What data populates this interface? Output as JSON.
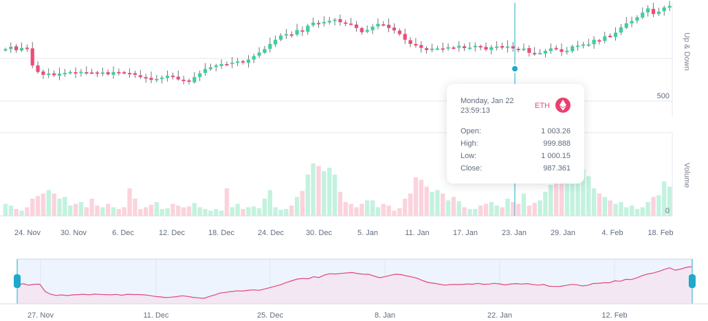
{
  "colors": {
    "up": "#3fcf9b",
    "down": "#ef4c74",
    "up_volume": "#c3f2df",
    "down_volume": "#fbd3dd",
    "crosshair": "#1ea8c9",
    "navigator_line": "#e0457b",
    "navigator_fill": "#f3e7f4",
    "navigator_mask": "#eef4fd",
    "handle": "#1ea8c9",
    "grid": "#e4e7ec"
  },
  "tooltip": {
    "date": "Monday, Jan 22",
    "time": "23:59:13",
    "coin": "ETH",
    "coin_icon": "ethereum-icon",
    "rows": [
      {
        "label": "Open:",
        "value": "1 003.26"
      },
      {
        "label": "High:",
        "value": "999.888"
      },
      {
        "label": "Low:",
        "value": "1 000.15"
      },
      {
        "label": "Close:",
        "value": "987.361"
      }
    ]
  },
  "chart_data": [
    {
      "type": "candlestick",
      "axis_title": "Up & Down",
      "y_tick_labels": [
        "500"
      ],
      "y_range": [
        300,
        800
      ],
      "grid": true,
      "x_tick_labels": [
        "24. Nov",
        "30. Nov",
        "6. Dec",
        "12. Dec",
        "18. Dec",
        "24. Dec",
        "30. Dec",
        "5. Jan",
        "11. Jan",
        "17. Jan",
        "23. Jan",
        "29. Jan",
        "4. Feb",
        "18. Feb"
      ],
      "close_series": [
        590,
        600,
        585,
        595,
        595,
        520,
        492,
        480,
        485,
        478,
        485,
        488,
        492,
        486,
        493,
        490,
        488,
        486,
        490,
        482,
        492,
        489,
        489,
        486,
        480,
        470,
        465,
        458,
        462,
        468,
        476,
        470,
        460,
        455,
        450,
        470,
        486,
        505,
        512,
        520,
        526,
        525,
        532,
        537,
        533,
        545,
        560,
        575,
        590,
        612,
        630,
        648,
        654,
        651,
        672,
        664,
        690,
        703,
        700,
        706,
        711,
        716,
        705,
        698,
        697,
        680,
        662,
        672,
        686,
        698,
        694,
        680,
        670,
        654,
        630,
        612,
        605,
        595,
        586,
        592,
        593,
        592,
        598,
        595,
        604,
        594,
        596,
        604,
        598,
        588,
        598,
        601,
        596,
        601,
        593,
        586,
        592,
        574,
        572,
        573,
        582,
        593,
        590,
        578,
        583,
        602,
        605,
        610,
        610,
        630,
        625,
        645,
        643,
        660,
        683,
        700,
        710,
        726,
        746,
        764,
        740,
        750,
        768,
        775
      ],
      "notes": "one candle per day, Nov 21 - Feb 19"
    },
    {
      "type": "bar",
      "axis_title": "Volume",
      "y_tick_labels": [
        "0"
      ],
      "values": [
        14,
        12,
        8,
        6,
        10,
        20,
        23,
        26,
        30,
        26,
        20,
        22,
        12,
        14,
        16,
        10,
        20,
        12,
        10,
        14,
        10,
        8,
        10,
        32,
        20,
        8,
        10,
        13,
        16,
        8,
        9,
        14,
        12,
        10,
        11,
        15,
        10,
        8,
        6,
        8,
        6,
        32,
        10,
        14,
        8,
        10,
        11,
        9,
        20,
        30,
        10,
        7,
        8,
        12,
        22,
        29,
        48,
        61,
        58,
        52,
        56,
        48,
        28,
        16,
        14,
        10,
        14,
        18,
        18,
        10,
        14,
        12,
        6,
        9,
        20,
        26,
        45,
        42,
        34,
        28,
        30,
        26,
        18,
        22,
        17,
        10,
        8,
        8,
        12,
        14,
        16,
        12,
        10,
        20,
        16,
        14,
        26,
        12,
        15,
        18,
        28,
        36,
        39,
        50,
        64,
        78,
        72,
        54,
        46,
        32,
        26,
        22,
        18,
        14,
        16,
        10,
        12,
        8,
        10,
        16,
        22,
        24,
        40,
        34
      ]
    },
    {
      "type": "area",
      "role": "navigator",
      "x_tick_labels": [
        "27. Nov",
        "11. Dec",
        "25. Dec",
        "8. Jan",
        "22. Jan",
        "12. Feb"
      ]
    }
  ]
}
